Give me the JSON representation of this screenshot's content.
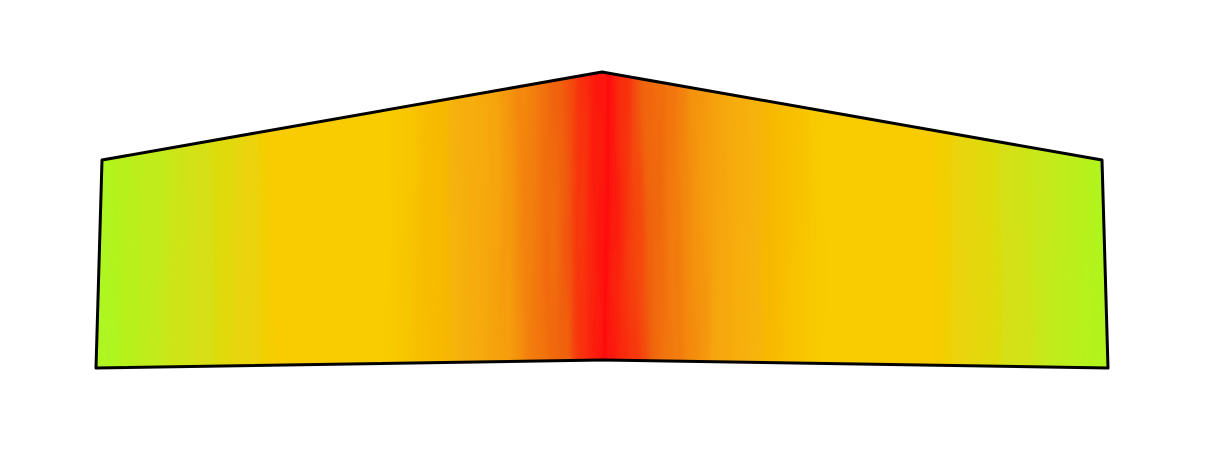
{
  "render": {
    "description_colors": {
      "edge_low": "#9cff24",
      "mid_low": "#c8e81a",
      "mid": "#f8cc02",
      "mid_high": "#f6a40a",
      "high": "#f0600a",
      "peak": "#ff0a0a",
      "outline": "#000000",
      "background": "#ffffff"
    },
    "shape": "pentagon-panel"
  }
}
